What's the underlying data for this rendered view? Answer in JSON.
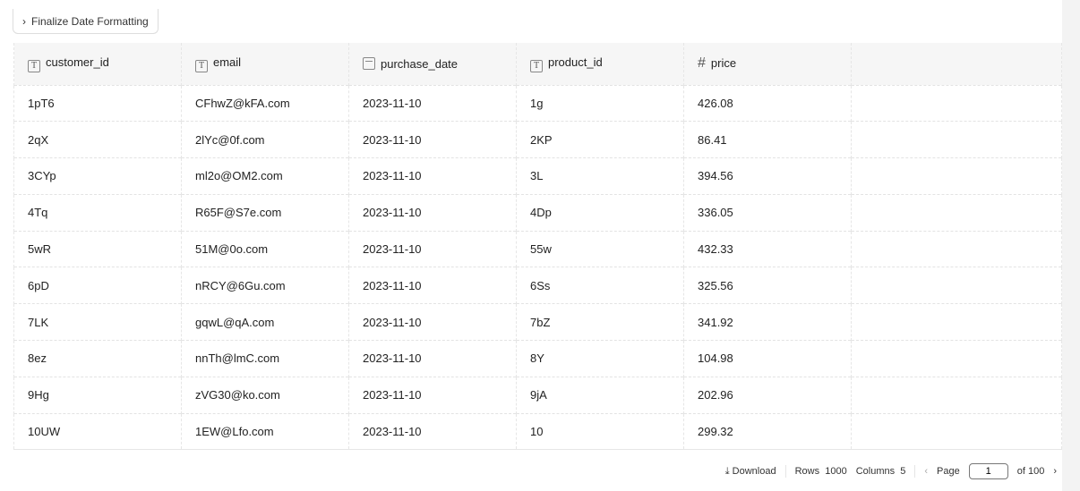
{
  "step": {
    "label": "Finalize Date Formatting"
  },
  "columns": [
    {
      "name": "customer_id",
      "type": "text"
    },
    {
      "name": "email",
      "type": "text"
    },
    {
      "name": "purchase_date",
      "type": "date"
    },
    {
      "name": "product_id",
      "type": "text"
    },
    {
      "name": "price",
      "type": "number"
    }
  ],
  "rows": [
    [
      "1pT6",
      "CFhwZ@kFA.com",
      "2023-11-10",
      "1g",
      "426.08"
    ],
    [
      "2qX",
      "2lYc@0f.com",
      "2023-11-10",
      "2KP",
      "86.41"
    ],
    [
      "3CYp",
      "ml2o@OM2.com",
      "2023-11-10",
      "3L",
      "394.56"
    ],
    [
      "4Tq",
      "R65F@S7e.com",
      "2023-11-10",
      "4Dp",
      "336.05"
    ],
    [
      "5wR",
      "51M@0o.com",
      "2023-11-10",
      "55w",
      "432.33"
    ],
    [
      "6pD",
      "nRCY@6Gu.com",
      "2023-11-10",
      "6Ss",
      "325.56"
    ],
    [
      "7LK",
      "gqwL@qA.com",
      "2023-11-10",
      "7bZ",
      "341.92"
    ],
    [
      "8ez",
      "nnTh@lmC.com",
      "2023-11-10",
      "8Y",
      "104.98"
    ],
    [
      "9Hg",
      "zVG30@ko.com",
      "2023-11-10",
      "9jA",
      "202.96"
    ],
    [
      "10UW",
      "1EW@Lfo.com",
      "2023-11-10",
      "10",
      "299.32"
    ]
  ],
  "footer": {
    "download": "Download",
    "rows_label": "Rows",
    "rows": "1000",
    "columns_label": "Columns",
    "columns": "5",
    "page_label": "Page",
    "page": "1",
    "of": "of 100"
  }
}
